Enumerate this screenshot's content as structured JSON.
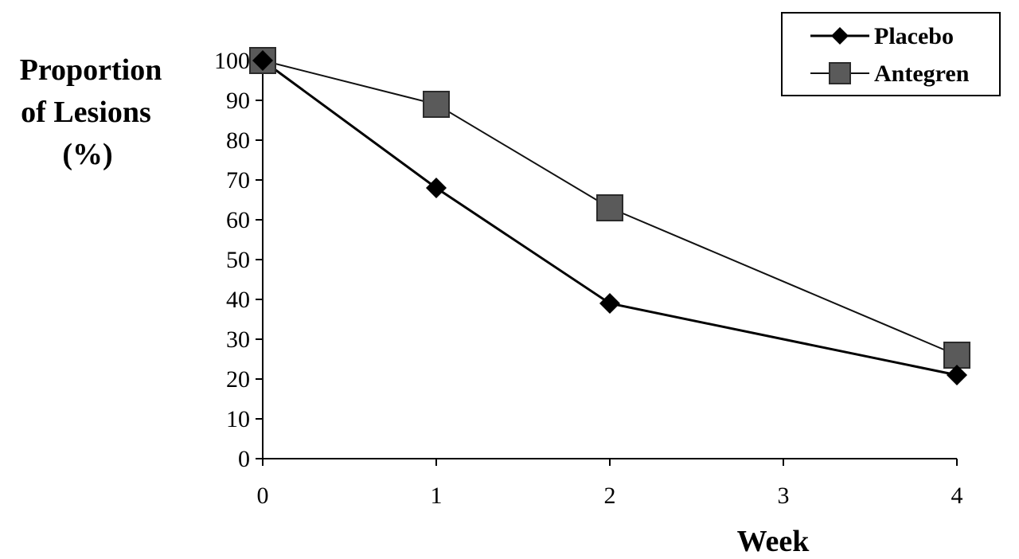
{
  "chart_data": {
    "type": "line",
    "title": "",
    "xlabel": "Week",
    "ylabel_lines": [
      "Proportion",
      "of Lesions",
      "(%)"
    ],
    "x": [
      0,
      1,
      2,
      4
    ],
    "xticks": [
      0,
      1,
      2,
      3,
      4
    ],
    "yticks": [
      0,
      10,
      20,
      30,
      40,
      50,
      60,
      70,
      80,
      90,
      100
    ],
    "xlim": [
      0,
      4
    ],
    "ylim": [
      0,
      100
    ],
    "grid": false,
    "legend_position": "top-right",
    "series": [
      {
        "name": "Placebo",
        "values": [
          100,
          68,
          39,
          21
        ],
        "marker": "diamond",
        "color": "#000000",
        "line_color": "#000000"
      },
      {
        "name": "Antegren",
        "values": [
          100,
          89,
          63,
          26
        ],
        "marker": "square",
        "color": "#5a5a5a",
        "line_color": "#111111"
      }
    ]
  }
}
